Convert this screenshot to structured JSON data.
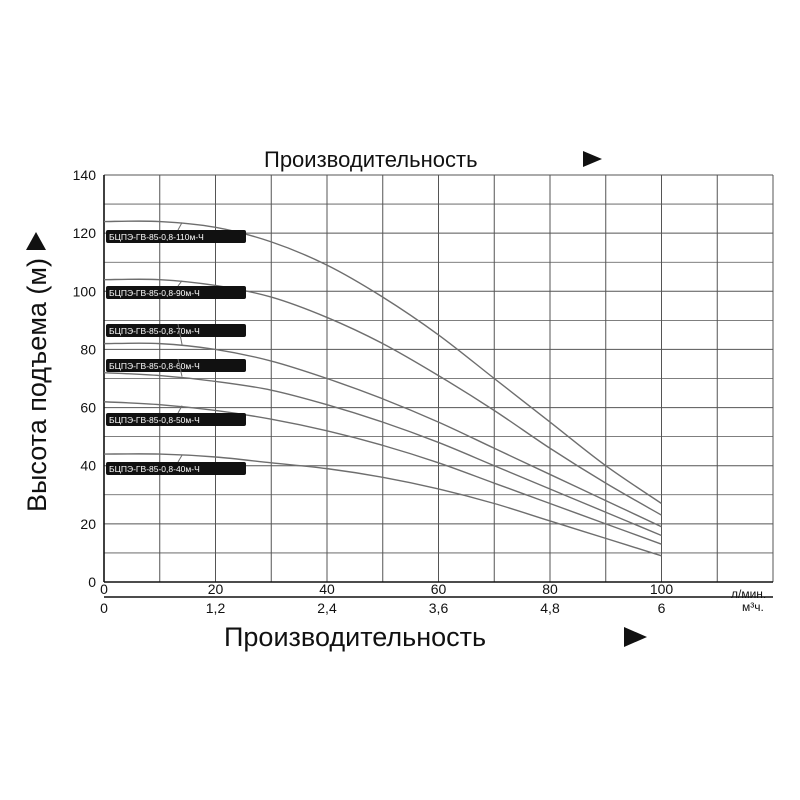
{
  "chart_data": {
    "type": "line",
    "title": "Производительность",
    "xlabel": "Производительность",
    "ylabel": "Высота подъема (м)",
    "x_unit": "л/мин.",
    "x2_unit": "м³ч.",
    "x_ticks": [
      "0",
      "20",
      "40",
      "60",
      "80",
      "100"
    ],
    "x2_ticks": [
      "0",
      "1,2",
      "2,4",
      "3,6",
      "4,8",
      "6"
    ],
    "y_ticks": [
      "0",
      "20",
      "40",
      "60",
      "80",
      "100",
      "120",
      "140"
    ],
    "xlim": [
      0,
      120
    ],
    "ylim": [
      0,
      140
    ],
    "grid": true,
    "legend": "inline labels on left",
    "x": [
      0,
      10,
      20,
      30,
      40,
      50,
      60,
      70,
      80,
      90,
      100
    ],
    "series": [
      {
        "name": "БЦПЭ-ГВ-85-0,8-110м-Ч",
        "values": [
          124,
          124,
          122,
          117,
          109,
          98,
          85,
          70,
          55,
          40,
          27
        ]
      },
      {
        "name": "БЦПЭ-ГВ-85-0,8-90м-Ч",
        "values": [
          104,
          104,
          102,
          98,
          91,
          82,
          71,
          59,
          46,
          34,
          23
        ]
      },
      {
        "name": "БЦПЭ-ГВ-85-0,8-70м-Ч",
        "values": [
          82,
          82,
          80,
          76,
          70,
          63,
          55,
          46,
          37,
          28,
          19
        ]
      },
      {
        "name": "БЦПЭ-ГВ-85-0,8-60м-Ч",
        "values": [
          72,
          71,
          69,
          66,
          61,
          55,
          48,
          40,
          32,
          24,
          16
        ]
      },
      {
        "name": "БЦПЭ-ГВ-85-0,8-50м-Ч",
        "values": [
          62,
          61,
          59,
          56,
          52,
          47,
          41,
          34,
          27,
          20,
          13
        ]
      },
      {
        "name": "БЦПЭ-ГВ-85-0,8-40м-Ч",
        "values": [
          44,
          44,
          43,
          41,
          39,
          36,
          32,
          27,
          21,
          15,
          9
        ]
      }
    ],
    "colors": {
      "curve": "#6e6e6e",
      "grid": "#555555",
      "label_bg": "#111111"
    }
  }
}
